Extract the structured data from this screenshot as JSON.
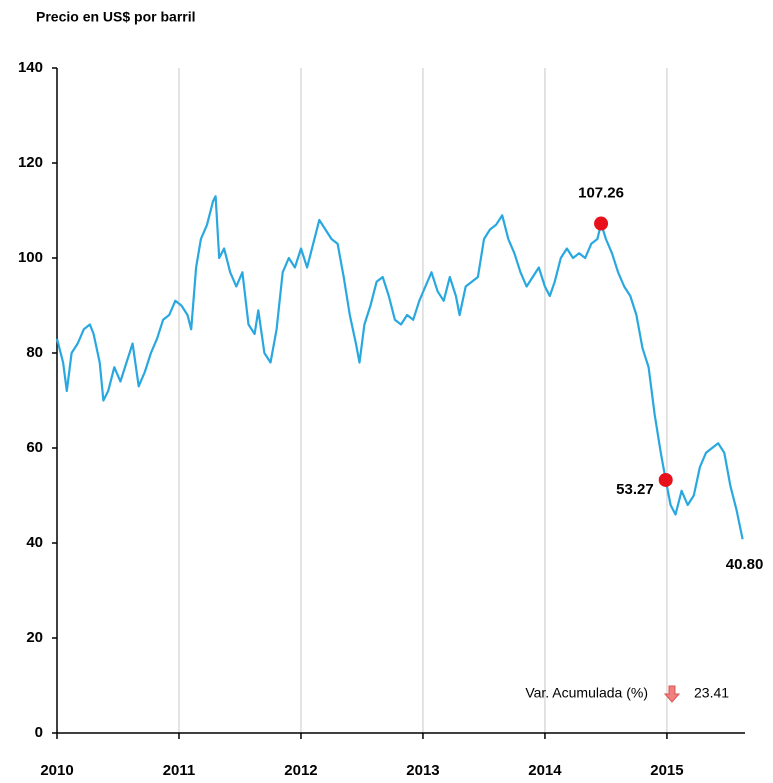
{
  "chart_data": {
    "type": "line",
    "title": "Precio en US$ por barril",
    "xlim": [
      2010,
      2015.64
    ],
    "xticks": [
      2010,
      2011,
      2012,
      2013,
      2014,
      2015
    ],
    "ylim": [
      0,
      140
    ],
    "yticks": [
      0,
      20,
      40,
      60,
      80,
      100,
      120,
      140
    ],
    "grid": "x",
    "x": [
      2010.0,
      2010.05,
      2010.08,
      2010.12,
      2010.17,
      2010.22,
      2010.27,
      2010.3,
      2010.35,
      2010.38,
      2010.42,
      2010.47,
      2010.52,
      2010.57,
      2010.62,
      2010.67,
      2010.72,
      2010.77,
      2010.82,
      2010.87,
      2010.92,
      2010.97,
      2011.02,
      2011.07,
      2011.1,
      2011.14,
      2011.18,
      2011.23,
      2011.28,
      2011.3,
      2011.33,
      2011.37,
      2011.42,
      2011.47,
      2011.52,
      2011.57,
      2011.62,
      2011.65,
      2011.7,
      2011.75,
      2011.8,
      2011.85,
      2011.9,
      2011.95,
      2012.0,
      2012.05,
      2012.1,
      2012.15,
      2012.2,
      2012.25,
      2012.3,
      2012.35,
      2012.4,
      2012.45,
      2012.48,
      2012.52,
      2012.57,
      2012.62,
      2012.67,
      2012.72,
      2012.77,
      2012.82,
      2012.87,
      2012.92,
      2012.97,
      2013.02,
      2013.07,
      2013.12,
      2013.17,
      2013.22,
      2013.27,
      2013.3,
      2013.35,
      2013.4,
      2013.45,
      2013.5,
      2013.55,
      2013.6,
      2013.65,
      2013.7,
      2013.75,
      2013.8,
      2013.85,
      2013.9,
      2013.95,
      2014.0,
      2014.04,
      2014.08,
      2014.13,
      2014.18,
      2014.23,
      2014.28,
      2014.33,
      2014.38,
      2014.43,
      2014.46,
      2014.5,
      2014.55,
      2014.6,
      2014.65,
      2014.7,
      2014.75,
      2014.8,
      2014.85,
      2014.9,
      2014.95,
      2014.99,
      2015.03,
      2015.07,
      2015.12,
      2015.17,
      2015.22,
      2015.27,
      2015.32,
      2015.37,
      2015.42,
      2015.47,
      2015.52,
      2015.57,
      2015.62
    ],
    "series": [
      {
        "color": "#29a8e0",
        "values": [
          83,
          78,
          72,
          80,
          82,
          85,
          86,
          84,
          78,
          70,
          72,
          77,
          74,
          78,
          82,
          73,
          76,
          80,
          83,
          87,
          88,
          91,
          90,
          88,
          85,
          98,
          104,
          107,
          112,
          113,
          100,
          102,
          97,
          94,
          97,
          86,
          84,
          89,
          80,
          78,
          85,
          97,
          100,
          98,
          102,
          98,
          103,
          108,
          106,
          104,
          103,
          96,
          88,
          82,
          78,
          86,
          90,
          95,
          96,
          92,
          87,
          86,
          88,
          87,
          91,
          94,
          97,
          93,
          91,
          96,
          92,
          88,
          94,
          95,
          96,
          104,
          106,
          107,
          109,
          104,
          101,
          97,
          94,
          96,
          98,
          94,
          92,
          95,
          100,
          102,
          100,
          101,
          100,
          103,
          104,
          107.26,
          104,
          101,
          97,
          94,
          92,
          88,
          81,
          77,
          67,
          59,
          53.27,
          48,
          46,
          51,
          48,
          50,
          56,
          59,
          60,
          61,
          59,
          52,
          47,
          40.8
        ]
      }
    ],
    "annotations": [
      {
        "x": 2014.46,
        "value": 107.26,
        "marker": true
      },
      {
        "x": 2014.99,
        "value": 53.27,
        "marker": true
      },
      {
        "x": 2015.62,
        "value": 40.8,
        "value_label": "40.80",
        "marker": false
      }
    ],
    "marker_color": "#e8111b",
    "indicator": {
      "label": "Var. Acumulada (%)",
      "value": 23.41,
      "direction": "down"
    }
  }
}
